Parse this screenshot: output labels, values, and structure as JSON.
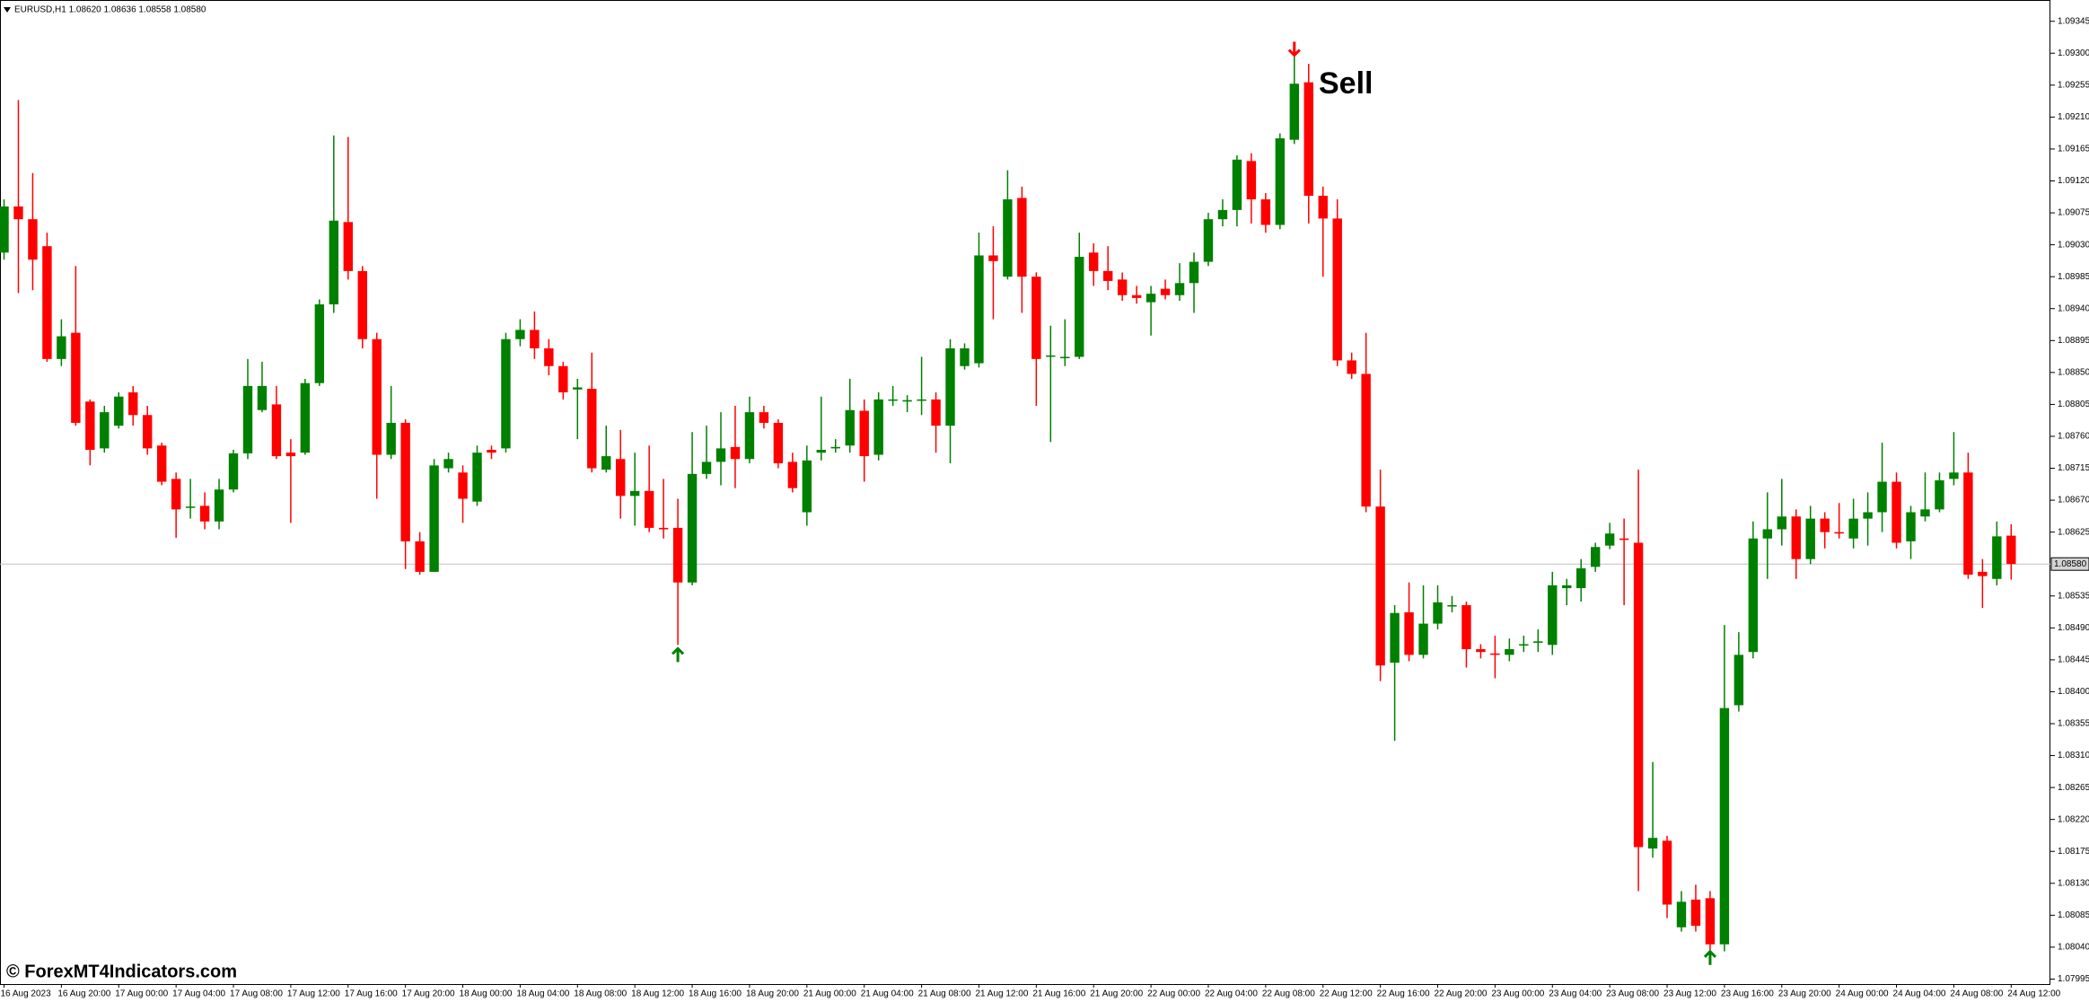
{
  "chart_data": {
    "type": "candlestick",
    "title": "EURUSD,H1  1.08620 1.08636 1.08558 1.08580",
    "annotation": "Sell",
    "watermark": "© ForexMT4Indicators.com",
    "up_color": "#008000",
    "down_color": "#ff0000",
    "ylim": [
      1.07988,
      1.09375
    ],
    "grid": false,
    "categories": [
      "16 Aug 2023",
      null,
      null,
      null,
      "16 Aug 20:00",
      null,
      null,
      null,
      "17 Aug 00:00",
      null,
      null,
      null,
      "17 Aug 04:00",
      null,
      null,
      null,
      "17 Aug 08:00",
      null,
      null,
      null,
      "17 Aug 12:00",
      null,
      null,
      null,
      "17 Aug 16:00",
      null,
      null,
      null,
      "17 Aug 20:00",
      null,
      null,
      null,
      "18 Aug 00:00",
      null,
      null,
      null,
      "18 Aug 04:00",
      null,
      null,
      null,
      "18 Aug 08:00",
      null,
      null,
      null,
      "18 Aug 12:00",
      null,
      null,
      null,
      "18 Aug 16:00",
      null,
      null,
      null,
      "18 Aug 20:00",
      null,
      null,
      null,
      "21 Aug 00:00",
      null,
      null,
      null,
      "21 Aug 04:00",
      null,
      null,
      null,
      "21 Aug 08:00",
      null,
      null,
      null,
      "21 Aug 12:00",
      null,
      null,
      null,
      "21 Aug 16:00",
      null,
      null,
      null,
      "21 Aug 20:00",
      null,
      null,
      null,
      "22 Aug 00:00",
      null,
      null,
      null,
      "22 Aug 04:00",
      null,
      null,
      null,
      "22 Aug 08:00",
      null,
      null,
      null,
      "22 Aug 12:00",
      null,
      null,
      null,
      "22 Aug 16:00",
      null,
      null,
      null,
      "22 Aug 20:00",
      null,
      null,
      null,
      "23 Aug 00:00",
      null,
      null,
      null,
      "23 Aug 04:00",
      null,
      null,
      null,
      "23 Aug 08:00",
      null,
      null,
      null,
      "23 Aug 12:00",
      null,
      null,
      null,
      "23 Aug 16:00",
      null,
      null,
      null,
      "23 Aug 20:00",
      null,
      null,
      null,
      "24 Aug 00:00",
      null,
      null,
      null,
      "24 Aug 04:00",
      null,
      null,
      null,
      "24 Aug 08:00",
      null,
      null,
      null,
      "24 Aug 12:00"
    ],
    "open": [
      1.09019,
      1.09084,
      1.09066,
      1.09028,
      1.08869,
      1.08906,
      1.08809,
      1.08743,
      1.08775,
      1.08822,
      1.0879,
      1.08747,
      1.087,
      1.08661,
      1.08662,
      1.0864,
      1.08685,
      1.08736,
      1.08797,
      1.08805,
      1.08737,
      1.08737,
      1.08835,
      1.08946,
      1.09062,
      1.08993,
      1.08897,
      1.08734,
      1.08779,
      1.08612,
      1.08569,
      1.08715,
      1.08709,
      1.08668,
      1.08741,
      1.08743,
      1.08897,
      1.0891,
      1.08884,
      1.08859,
      1.08826,
      1.08827,
      1.08713,
      1.08728,
      1.08676,
      1.08683,
      1.08631,
      1.08631,
      1.08554,
      1.08707,
      1.08724,
      1.08745,
      1.08728,
      1.08794,
      1.08779,
      1.08724,
      1.08653,
      1.08737,
      1.08743,
      1.08747,
      1.08796,
      1.08734,
      1.08811,
      1.08809,
      1.08812,
      1.08812,
      1.08775,
      1.08859,
      1.08863,
      1.09015,
      1.08985,
      1.09096,
      1.08985,
      1.08874,
      1.08872,
      1.08872,
      1.09019,
      1.08993,
      1.08981,
      1.08959,
      1.08949,
      1.08968,
      1.08959,
      1.08976,
      1.09006,
      1.09066,
      1.09079,
      1.09148,
      1.09094,
      1.09058,
      1.09178,
      1.09259,
      1.09099,
      1.09067,
      1.08867,
      1.08848,
      1.08661,
      1.08441,
      1.08512,
      1.08452,
      1.08496,
      1.08522,
      1.08522,
      1.0846,
      1.08454,
      1.08452,
      1.08466,
      1.08469,
      1.08466,
      1.08546,
      1.08546,
      1.08576,
      1.08606,
      1.08616,
      1.0861,
      1.08179,
      1.0819,
      1.08068,
      1.08107,
      1.08109,
      1.08044,
      1.08381,
      1.08456,
      1.08616,
      1.08629,
      1.08647,
      1.08587,
      1.08644,
      1.08625,
      1.08616,
      1.08644,
      1.08653,
      1.08696,
      1.08612,
      1.08647,
      1.08657,
      1.087,
      1.08709,
      1.08569,
      1.08559,
      1.0862
    ],
    "high": [
      1.09094,
      1.09234,
      1.09131,
      1.09047,
      1.08925,
      1.09,
      1.08812,
      1.08803,
      1.08822,
      1.08831,
      1.08803,
      1.08751,
      1.08709,
      1.087,
      1.08681,
      1.087,
      1.08741,
      1.08869,
      1.08865,
      1.08831,
      1.08756,
      1.08841,
      1.08953,
      1.09184,
      1.09182,
      1.09,
      1.08906,
      1.08831,
      1.08784,
      1.08625,
      1.08728,
      1.08737,
      1.08719,
      1.08747,
      1.08747,
      1.08906,
      1.08925,
      1.08936,
      1.08897,
      1.08865,
      1.08841,
      1.08878,
      1.08775,
      1.08769,
      1.08737,
      1.08747,
      1.087,
      1.08672,
      1.08766,
      1.08775,
      1.08794,
      1.08803,
      1.08816,
      1.08803,
      1.08784,
      1.08737,
      1.08747,
      1.08816,
      1.08756,
      1.08841,
      1.08812,
      1.08822,
      1.08831,
      1.08818,
      1.08872,
      1.08822,
      1.08897,
      1.08891,
      1.09047,
      1.09056,
      1.09135,
      1.09112,
      1.08991,
      1.08916,
      1.08925,
      1.09047,
      1.09032,
      1.09028,
      1.08991,
      1.08972,
      1.08972,
      1.08981,
      1.09004,
      1.09019,
      1.09075,
      1.09094,
      1.09156,
      1.09159,
      1.09103,
      1.09187,
      1.09296,
      1.09285,
      1.09112,
      1.09094,
      1.08878,
      1.08906,
      1.08713,
      1.08522,
      1.08554,
      1.0855,
      1.0855,
      1.08535,
      1.08527,
      1.08467,
      1.08479,
      1.08475,
      1.08479,
      1.08488,
      1.08569,
      1.08559,
      1.08587,
      1.0861,
      1.08638,
      1.08644,
      1.08713,
      1.08301,
      1.08197,
      1.08119,
      1.08128,
      1.08119,
      1.08494,
      1.08484,
      1.0864,
      1.08681,
      1.087,
      1.08657,
      1.08662,
      1.08653,
      1.08666,
      1.08672,
      1.08681,
      1.08751,
      1.08709,
      1.08662,
      1.08709,
      1.08709,
      1.08766,
      1.08737,
      1.08587,
      1.0864,
      1.08636
    ],
    "low": [
      1.09009,
      1.08962,
      1.08966,
      1.08865,
      1.08859,
      1.08775,
      1.08719,
      1.08737,
      1.08771,
      1.08775,
      1.08734,
      1.08691,
      1.08617,
      1.08644,
      1.08629,
      1.08629,
      1.08681,
      1.08728,
      1.08794,
      1.08728,
      1.08638,
      1.08734,
      1.08831,
      1.08934,
      1.08981,
      1.08884,
      1.08672,
      1.08728,
      1.08573,
      1.08565,
      1.08569,
      1.08709,
      1.08638,
      1.08662,
      1.08728,
      1.08737,
      1.08887,
      1.08869,
      1.08846,
      1.08812,
      1.08756,
      1.08709,
      1.08709,
      1.08644,
      1.08634,
      1.08625,
      1.08616,
      1.08466,
      1.0855,
      1.087,
      1.08691,
      1.08687,
      1.08722,
      1.08771,
      1.08715,
      1.08681,
      1.08634,
      1.08726,
      1.08737,
      1.08737,
      1.08696,
      1.08726,
      1.08803,
      1.08794,
      1.0879,
      1.08737,
      1.08722,
      1.08854,
      1.08857,
      1.08925,
      1.08981,
      1.08934,
      1.08803,
      1.08752,
      1.08859,
      1.08869,
      1.08972,
      1.08966,
      1.08951,
      1.08947,
      1.08902,
      1.08953,
      1.08951,
      1.08934,
      1.09,
      1.09056,
      1.09056,
      1.0906,
      1.09047,
      1.09052,
      1.09172,
      1.0906,
      1.08985,
      1.08859,
      1.08841,
      1.08653,
      1.08415,
      1.08331,
      1.08443,
      1.08447,
      1.08488,
      1.08512,
      1.08434,
      1.08447,
      1.08419,
      1.08443,
      1.08456,
      1.08456,
      1.08452,
      1.08522,
      1.08527,
      1.08569,
      1.08601,
      1.08522,
      1.08119,
      1.08166,
      1.08081,
      1.08062,
      1.08062,
      1.08034,
      1.08034,
      1.08372,
      1.08447,
      1.08559,
      1.08606,
      1.08559,
      1.0858,
      1.08602,
      1.08616,
      1.08602,
      1.08606,
      1.08625,
      1.08602,
      1.08587,
      1.0864,
      1.08653,
      1.08691,
      1.08559,
      1.08518,
      1.0855,
      1.08558
    ],
    "close": [
      1.09084,
      1.09066,
      1.09009,
      1.08869,
      1.08901,
      1.08779,
      1.08741,
      1.08794,
      1.08816,
      1.0879,
      1.08743,
      1.08696,
      1.08657,
      1.08661,
      1.0864,
      1.08685,
      1.08736,
      1.08831,
      1.08831,
      1.08732,
      1.08732,
      1.08835,
      1.08946,
      1.09064,
      1.08993,
      1.08897,
      1.08734,
      1.08779,
      1.08612,
      1.08569,
      1.08719,
      1.08728,
      1.08672,
      1.08737,
      1.08737,
      1.08897,
      1.0891,
      1.08884,
      1.08859,
      1.08822,
      1.08829,
      1.08715,
      1.08732,
      1.08676,
      1.08683,
      1.08631,
      1.08629,
      1.08554,
      1.08707,
      1.08724,
      1.08743,
      1.08728,
      1.08794,
      1.08779,
      1.08722,
      1.08687,
      1.08726,
      1.08741,
      1.08745,
      1.08797,
      1.08732,
      1.08812,
      1.08812,
      1.08811,
      1.08812,
      1.08775,
      1.08884,
      1.08884,
      1.09015,
      1.09007,
      1.09094,
      1.08985,
      1.08869,
      1.08874,
      1.08872,
      1.09013,
      1.08993,
      1.08979,
      1.08959,
      1.08955,
      1.08961,
      1.08959,
      1.08976,
      1.09006,
      1.09066,
      1.09079,
      1.0915,
      1.09094,
      1.09058,
      1.0918,
      1.09257,
      1.09099,
      1.09067,
      1.08867,
      1.08848,
      1.08661,
      1.08437,
      1.08511,
      1.08452,
      1.08496,
      1.08526,
      1.08522,
      1.0846,
      1.08456,
      1.08452,
      1.0846,
      1.08467,
      1.08471,
      1.0855,
      1.0855,
      1.08574,
      1.08604,
      1.08623,
      1.08614,
      1.08181,
      1.08194,
      1.081,
      1.08104,
      1.0807,
      1.08044,
      1.08377,
      1.08452,
      1.08616,
      1.08629,
      1.08647,
      1.08587,
      1.08644,
      1.08625,
      1.08623,
      1.08644,
      1.08653,
      1.08696,
      1.0861,
      1.08653,
      1.08657,
      1.08698,
      1.08709,
      1.08565,
      1.08563,
      1.08619,
      1.0858
    ],
    "yticks": [
      1.09345,
      {
        "value": 1.093,
        "label": "1.09300"
      },
      1.09255,
      {
        "value": 1.0921,
        "label": "1.09210"
      },
      1.09165,
      {
        "value": 1.0912,
        "label": "1.09120"
      },
      1.09075,
      {
        "value": 1.0903,
        "label": "1.09030"
      },
      1.08985,
      {
        "value": 1.0894,
        "label": "1.08940"
      },
      1.08895,
      {
        "value": 1.0885,
        "label": "1.08850"
      },
      1.08805,
      {
        "value": 1.0876,
        "label": "1.08760"
      },
      1.08715,
      {
        "value": 1.0867,
        "label": "1.08670"
      },
      1.08625,
      1.08535,
      {
        "value": 1.0849,
        "label": "1.08490"
      },
      1.08445,
      {
        "value": 1.084,
        "label": "1.08400"
      },
      1.08355,
      {
        "value": 1.0831,
        "label": "1.08310"
      },
      1.08265,
      {
        "value": 1.0822,
        "label": "1.08220"
      },
      1.08175,
      {
        "value": 1.0813,
        "label": "1.08130"
      },
      1.08085,
      {
        "value": 1.0804,
        "label": "1.08040"
      },
      1.07995
    ],
    "current_price": {
      "value": 1.0858,
      "label": "1.08580"
    },
    "arrows": [
      {
        "signal": "sell",
        "candle": 90,
        "price": 1.09306,
        "color": "#ff0000"
      },
      {
        "signal": "buy",
        "candle": 47,
        "price": 1.08452,
        "color": "#008000"
      },
      {
        "signal": "buy",
        "candle": 119,
        "price": 1.08025,
        "color": "#008000"
      }
    ]
  }
}
